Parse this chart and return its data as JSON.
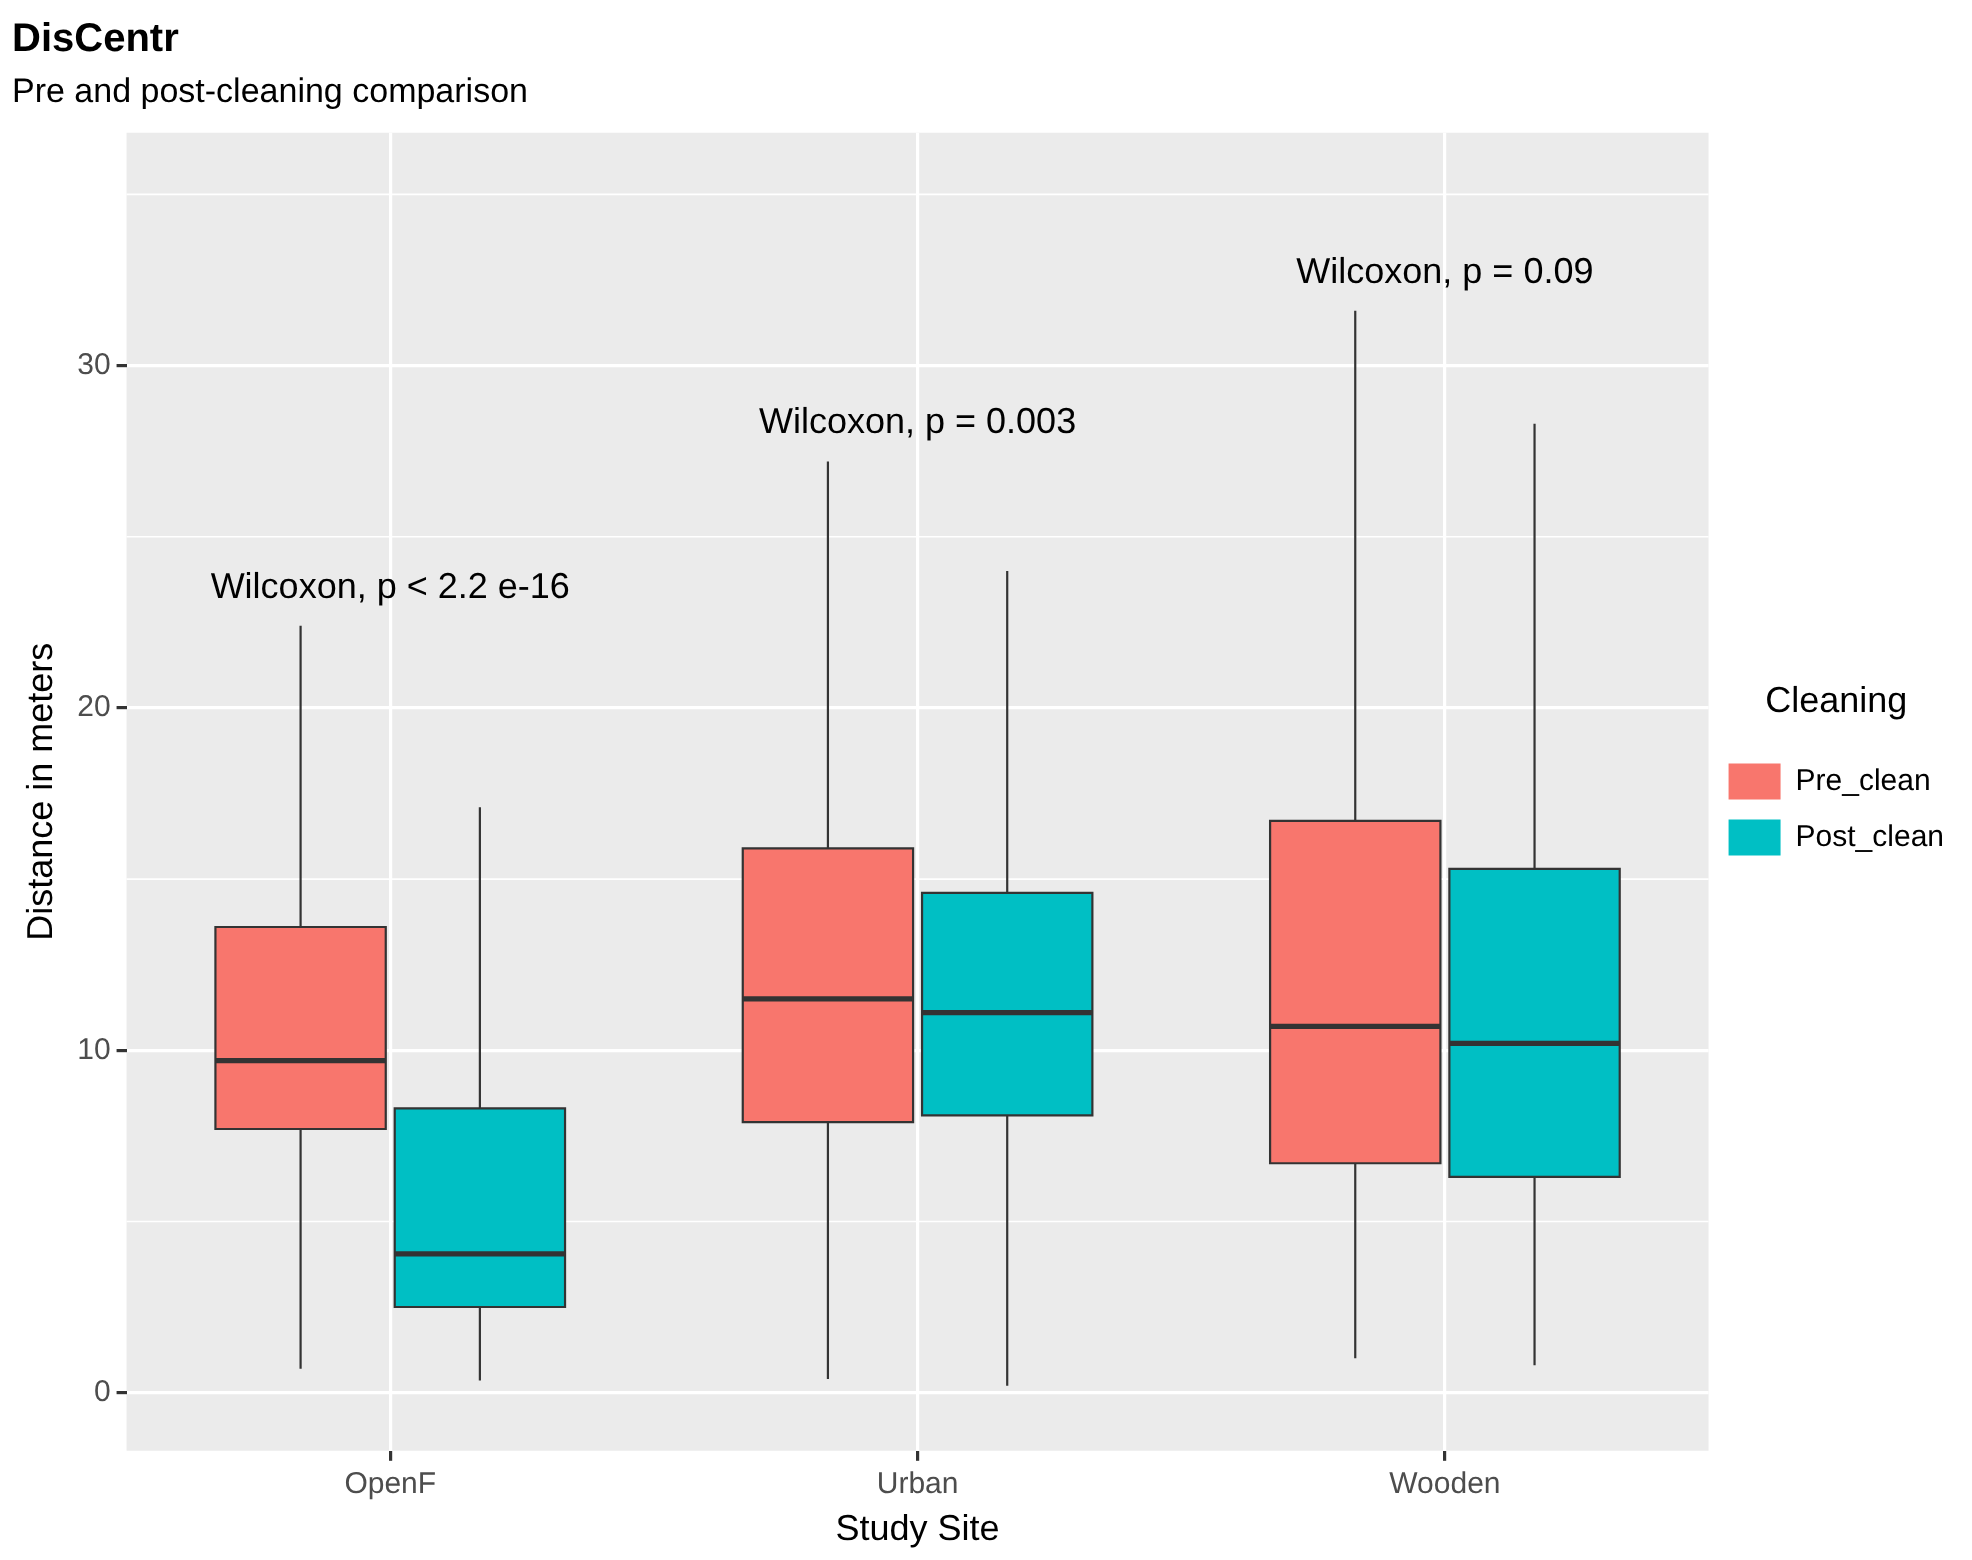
{
  "chart_data": {
    "type": "box",
    "title": "DisCentr",
    "subtitle": "Pre and post-cleaning comparison",
    "xlabel": "Study Site",
    "ylabel": "Distance in meters",
    "legend_title": "Cleaning",
    "legend": "right",
    "grid": true,
    "categories": [
      "OpenF",
      "Urban",
      "Wooden"
    ],
    "ylim": [
      -1.7,
      36.8
    ],
    "yticks": [
      0,
      10,
      20,
      30
    ],
    "series": [
      {
        "name": "Pre_clean",
        "color": "#f8766d",
        "boxes": [
          {
            "low": 0.7,
            "q1": 7.7,
            "median": 9.7,
            "q3": 13.6,
            "high": 22.4
          },
          {
            "low": 0.4,
            "q1": 7.9,
            "median": 11.5,
            "q3": 15.9,
            "high": 27.2
          },
          {
            "low": 1.0,
            "q1": 6.7,
            "median": 10.7,
            "q3": 16.7,
            "high": 31.6
          }
        ]
      },
      {
        "name": "Post_clean",
        "color": "#00bfc4",
        "boxes": [
          {
            "low": 0.35,
            "q1": 2.5,
            "median": 4.05,
            "q3": 8.3,
            "high": 17.1
          },
          {
            "low": 0.2,
            "q1": 8.1,
            "median": 11.1,
            "q3": 14.6,
            "high": 24.0
          },
          {
            "low": 0.8,
            "q1": 6.3,
            "median": 10.2,
            "q3": 15.3,
            "high": 28.3
          }
        ]
      }
    ],
    "annotations": [
      "Wilcoxon, p < 2.2 e-16",
      "Wilcoxon, p = 0.003",
      "Wilcoxon, p = 0.09"
    ]
  }
}
